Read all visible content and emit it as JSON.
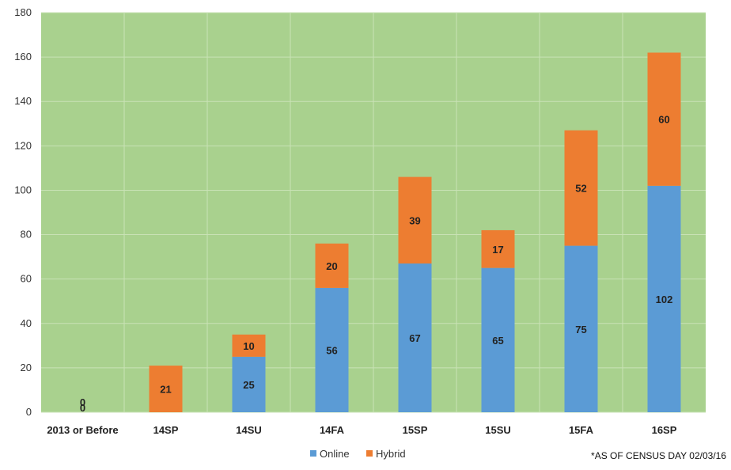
{
  "chart_data": {
    "type": "bar",
    "stacked": true,
    "categories": [
      "2013 or Before",
      "14SP",
      "14SU",
      "14FA",
      "15SP",
      "15SU",
      "15FA",
      "16SP"
    ],
    "series": [
      {
        "name": "Online",
        "values": [
          0,
          0,
          25,
          56,
          67,
          65,
          75,
          102
        ],
        "color": "#5b9bd5"
      },
      {
        "name": "Hybrid",
        "values": [
          0,
          21,
          10,
          20,
          39,
          17,
          52,
          60
        ],
        "color": "#ed7d31"
      }
    ],
    "ylim": [
      0,
      180
    ],
    "yticks": [
      0,
      20,
      40,
      60,
      80,
      100,
      120,
      140,
      160,
      180
    ],
    "grid": true,
    "plot_background": "#a9d18e",
    "legend_position": "bottom",
    "title": "",
    "xlabel": "",
    "ylabel": ""
  },
  "footnote": "*AS OF CENSUS DAY  02/03/16"
}
